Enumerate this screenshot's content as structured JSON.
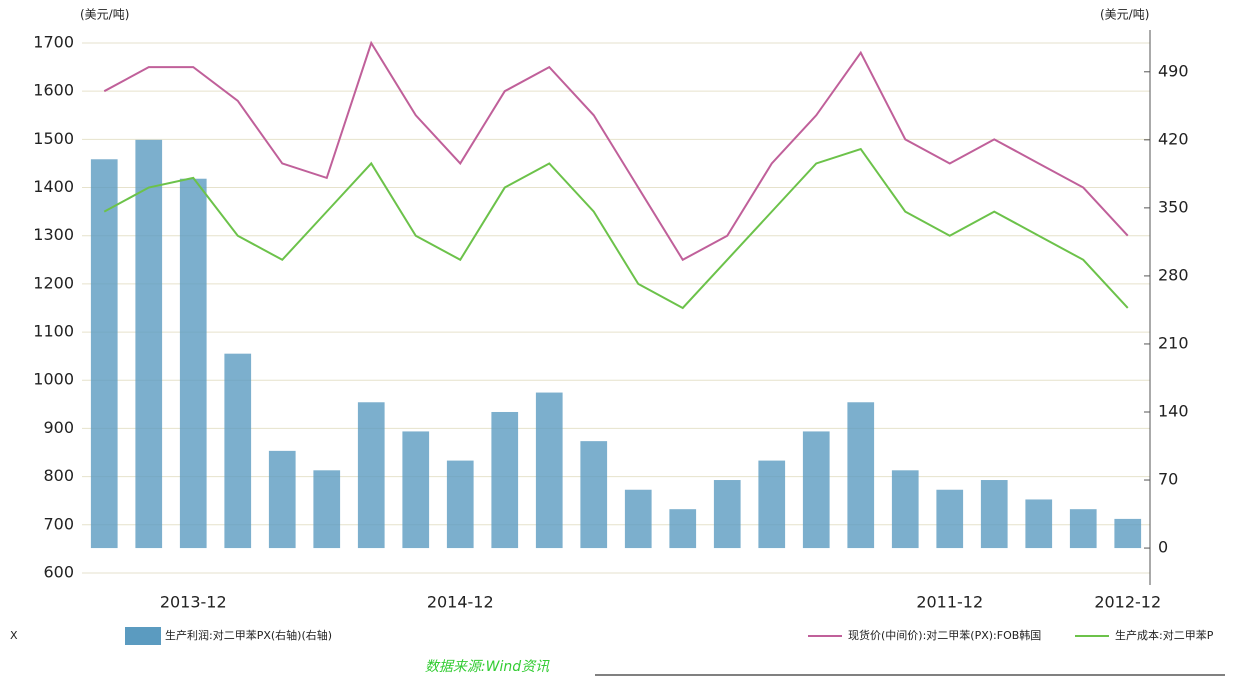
{
  "chart_data": {
    "type": "bar-line",
    "left_unit": "(美元/吨)",
    "right_unit": "(美元/吨)",
    "legend_fragment": "X",
    "source": "数据来源:Wind资讯",
    "categories": [
      null,
      null,
      "2013-12",
      null,
      null,
      null,
      null,
      null,
      "2014-12",
      null,
      null,
      null,
      null,
      null,
      null,
      null,
      null,
      null,
      null,
      "2011-12",
      null,
      null,
      null,
      "2012-12"
    ],
    "ylim": [
      575,
      1727
    ],
    "yticks": [
      600,
      700,
      800,
      900,
      1000,
      1100,
      1200,
      1300,
      1400,
      1500,
      1600,
      1700
    ],
    "y2lim": [
      -38,
      533
    ],
    "y2ticks": [
      0,
      70,
      140,
      210,
      280,
      350,
      420,
      490
    ],
    "grid": true,
    "series": [
      {
        "name": "生产利润:对二甲苯PX(右轴)(右轴)",
        "color": "#5b9bc0",
        "axis": "y2",
        "kind": "bar",
        "values": [
          400,
          420,
          380,
          200,
          100,
          80,
          150,
          120,
          90,
          140,
          160,
          110,
          60,
          40,
          70,
          90,
          120,
          150,
          80,
          60,
          70,
          50,
          40,
          30
        ]
      },
      {
        "name": "现货价(中间价):对二甲苯(PX):FOB韩国",
        "color": "#c0609a",
        "kind": "line",
        "values": [
          1600,
          1650,
          1650,
          1580,
          1450,
          1420,
          1700,
          1550,
          1450,
          1600,
          1650,
          1550,
          1400,
          1250,
          1300,
          1450,
          1550,
          1680,
          1500,
          1450,
          1500,
          1450,
          1400,
          1300
        ]
      },
      {
        "name": "生产成本:对二甲苯P",
        "color": "#6cc24a",
        "kind": "line",
        "values": [
          1350,
          1400,
          1420,
          1300,
          1250,
          1350,
          1450,
          1300,
          1250,
          1400,
          1450,
          1350,
          1200,
          1150,
          1250,
          1350,
          1450,
          1480,
          1350,
          1300,
          1350,
          1300,
          1250,
          1150
        ]
      }
    ]
  }
}
